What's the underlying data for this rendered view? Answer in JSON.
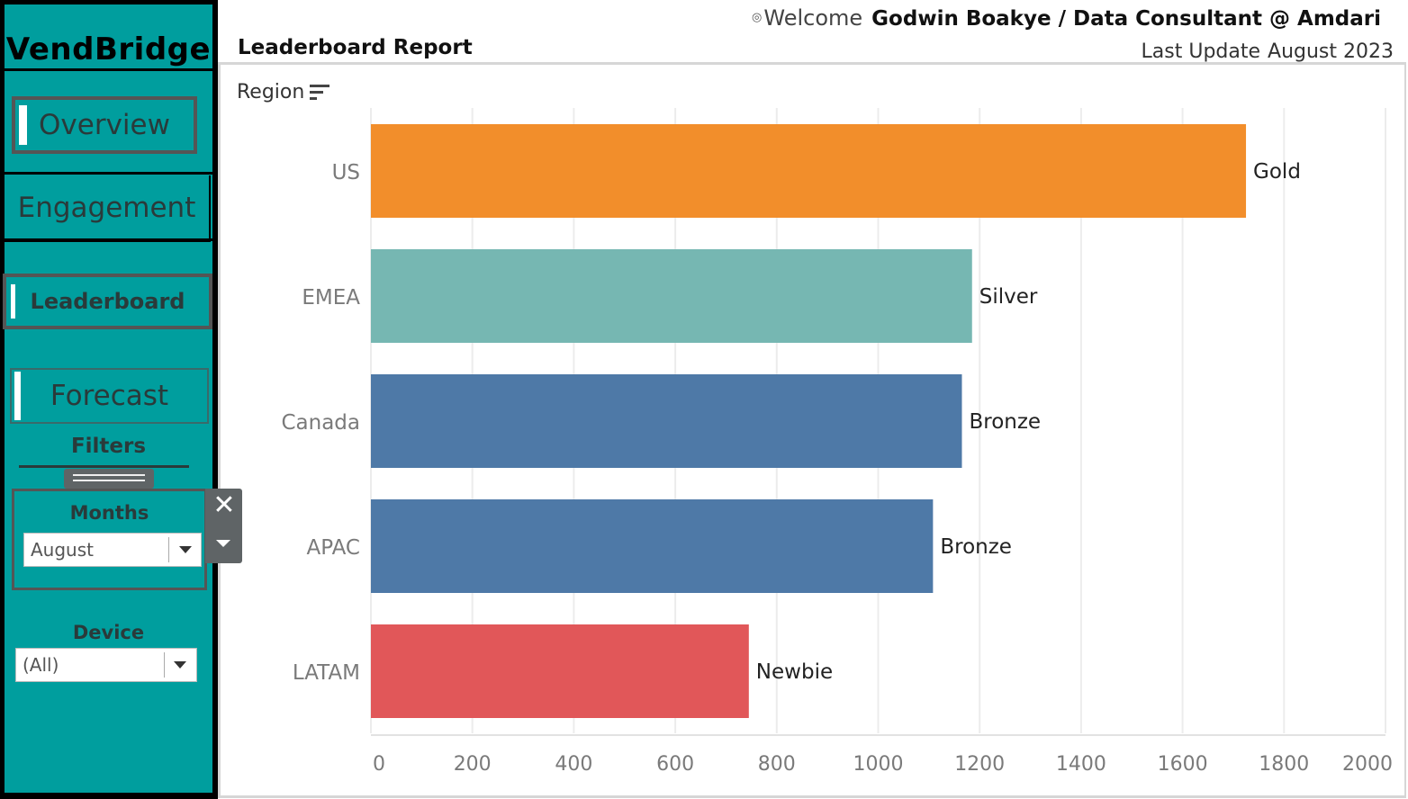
{
  "app": {
    "brand": "VendBridge",
    "nav": {
      "overview": "Overview",
      "engagement": "Engagement",
      "leaderboard": "Leaderboard",
      "forecast": "Forecast"
    },
    "filters": {
      "title": "Filters",
      "months": {
        "label": "Months",
        "value": "August"
      },
      "device": {
        "label": "Device",
        "value": "(All)"
      }
    }
  },
  "header": {
    "welcome_text": "Welcome",
    "user": "Godwin Boakye / Data Consultant @ Amdari",
    "report_title": "Leaderboard Report",
    "last_update_label": "Last Update",
    "last_update_value": "August 2023"
  },
  "chart": {
    "dimension_header": "Region"
  },
  "chart_data": {
    "type": "bar",
    "orientation": "horizontal",
    "categories": [
      "US",
      "EMEA",
      "Canada",
      "APAC",
      "LATAM"
    ],
    "values": [
      1725,
      1185,
      1165,
      1108,
      745
    ],
    "labels": [
      "Gold",
      "Silver",
      "Bronze",
      "Bronze",
      "Newbie"
    ],
    "colors": [
      "#f28e2b",
      "#76b7b2",
      "#4e79a7",
      "#4e79a7",
      "#e15759"
    ],
    "xlim": [
      0,
      2000
    ],
    "xticks": [
      0,
      200,
      400,
      600,
      800,
      1000,
      1200,
      1400,
      1600,
      1800,
      2000
    ],
    "grid": true
  }
}
